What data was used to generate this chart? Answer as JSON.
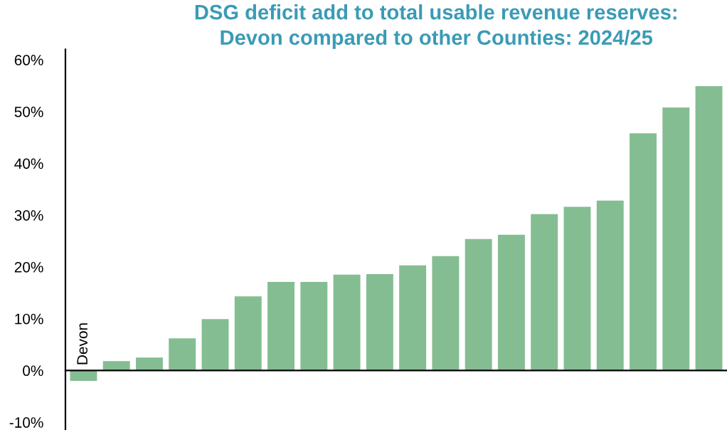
{
  "chart_data": {
    "type": "bar",
    "title": "DSG deficit add to total usable revenue reserves:\nDevon compared to other Counties: 2024/25",
    "categories": [
      "Devon",
      null,
      null,
      null,
      null,
      null,
      null,
      null,
      null,
      null,
      null,
      null,
      null,
      null,
      null,
      null,
      null,
      null,
      null,
      null
    ],
    "values": [
      -2.0,
      1.8,
      2.5,
      6.2,
      9.9,
      14.3,
      17.1,
      17.1,
      18.5,
      18.6,
      20.3,
      22.1,
      25.4,
      26.2,
      30.2,
      31.6,
      32.8,
      45.8,
      50.8,
      54.9
    ],
    "color": "#85bd92",
    "ylim": [
      -11.5,
      62
    ],
    "yticks": [
      {
        "value": -10,
        "label": "-10%"
      },
      {
        "value": 0,
        "label": "0%"
      },
      {
        "value": 10,
        "label": "10%"
      },
      {
        "value": 20,
        "label": "20%"
      },
      {
        "value": 30,
        "label": "30%"
      },
      {
        "value": 40,
        "label": "40%"
      },
      {
        "value": 50,
        "label": "50%"
      },
      {
        "value": 60,
        "label": "60%"
      }
    ]
  }
}
